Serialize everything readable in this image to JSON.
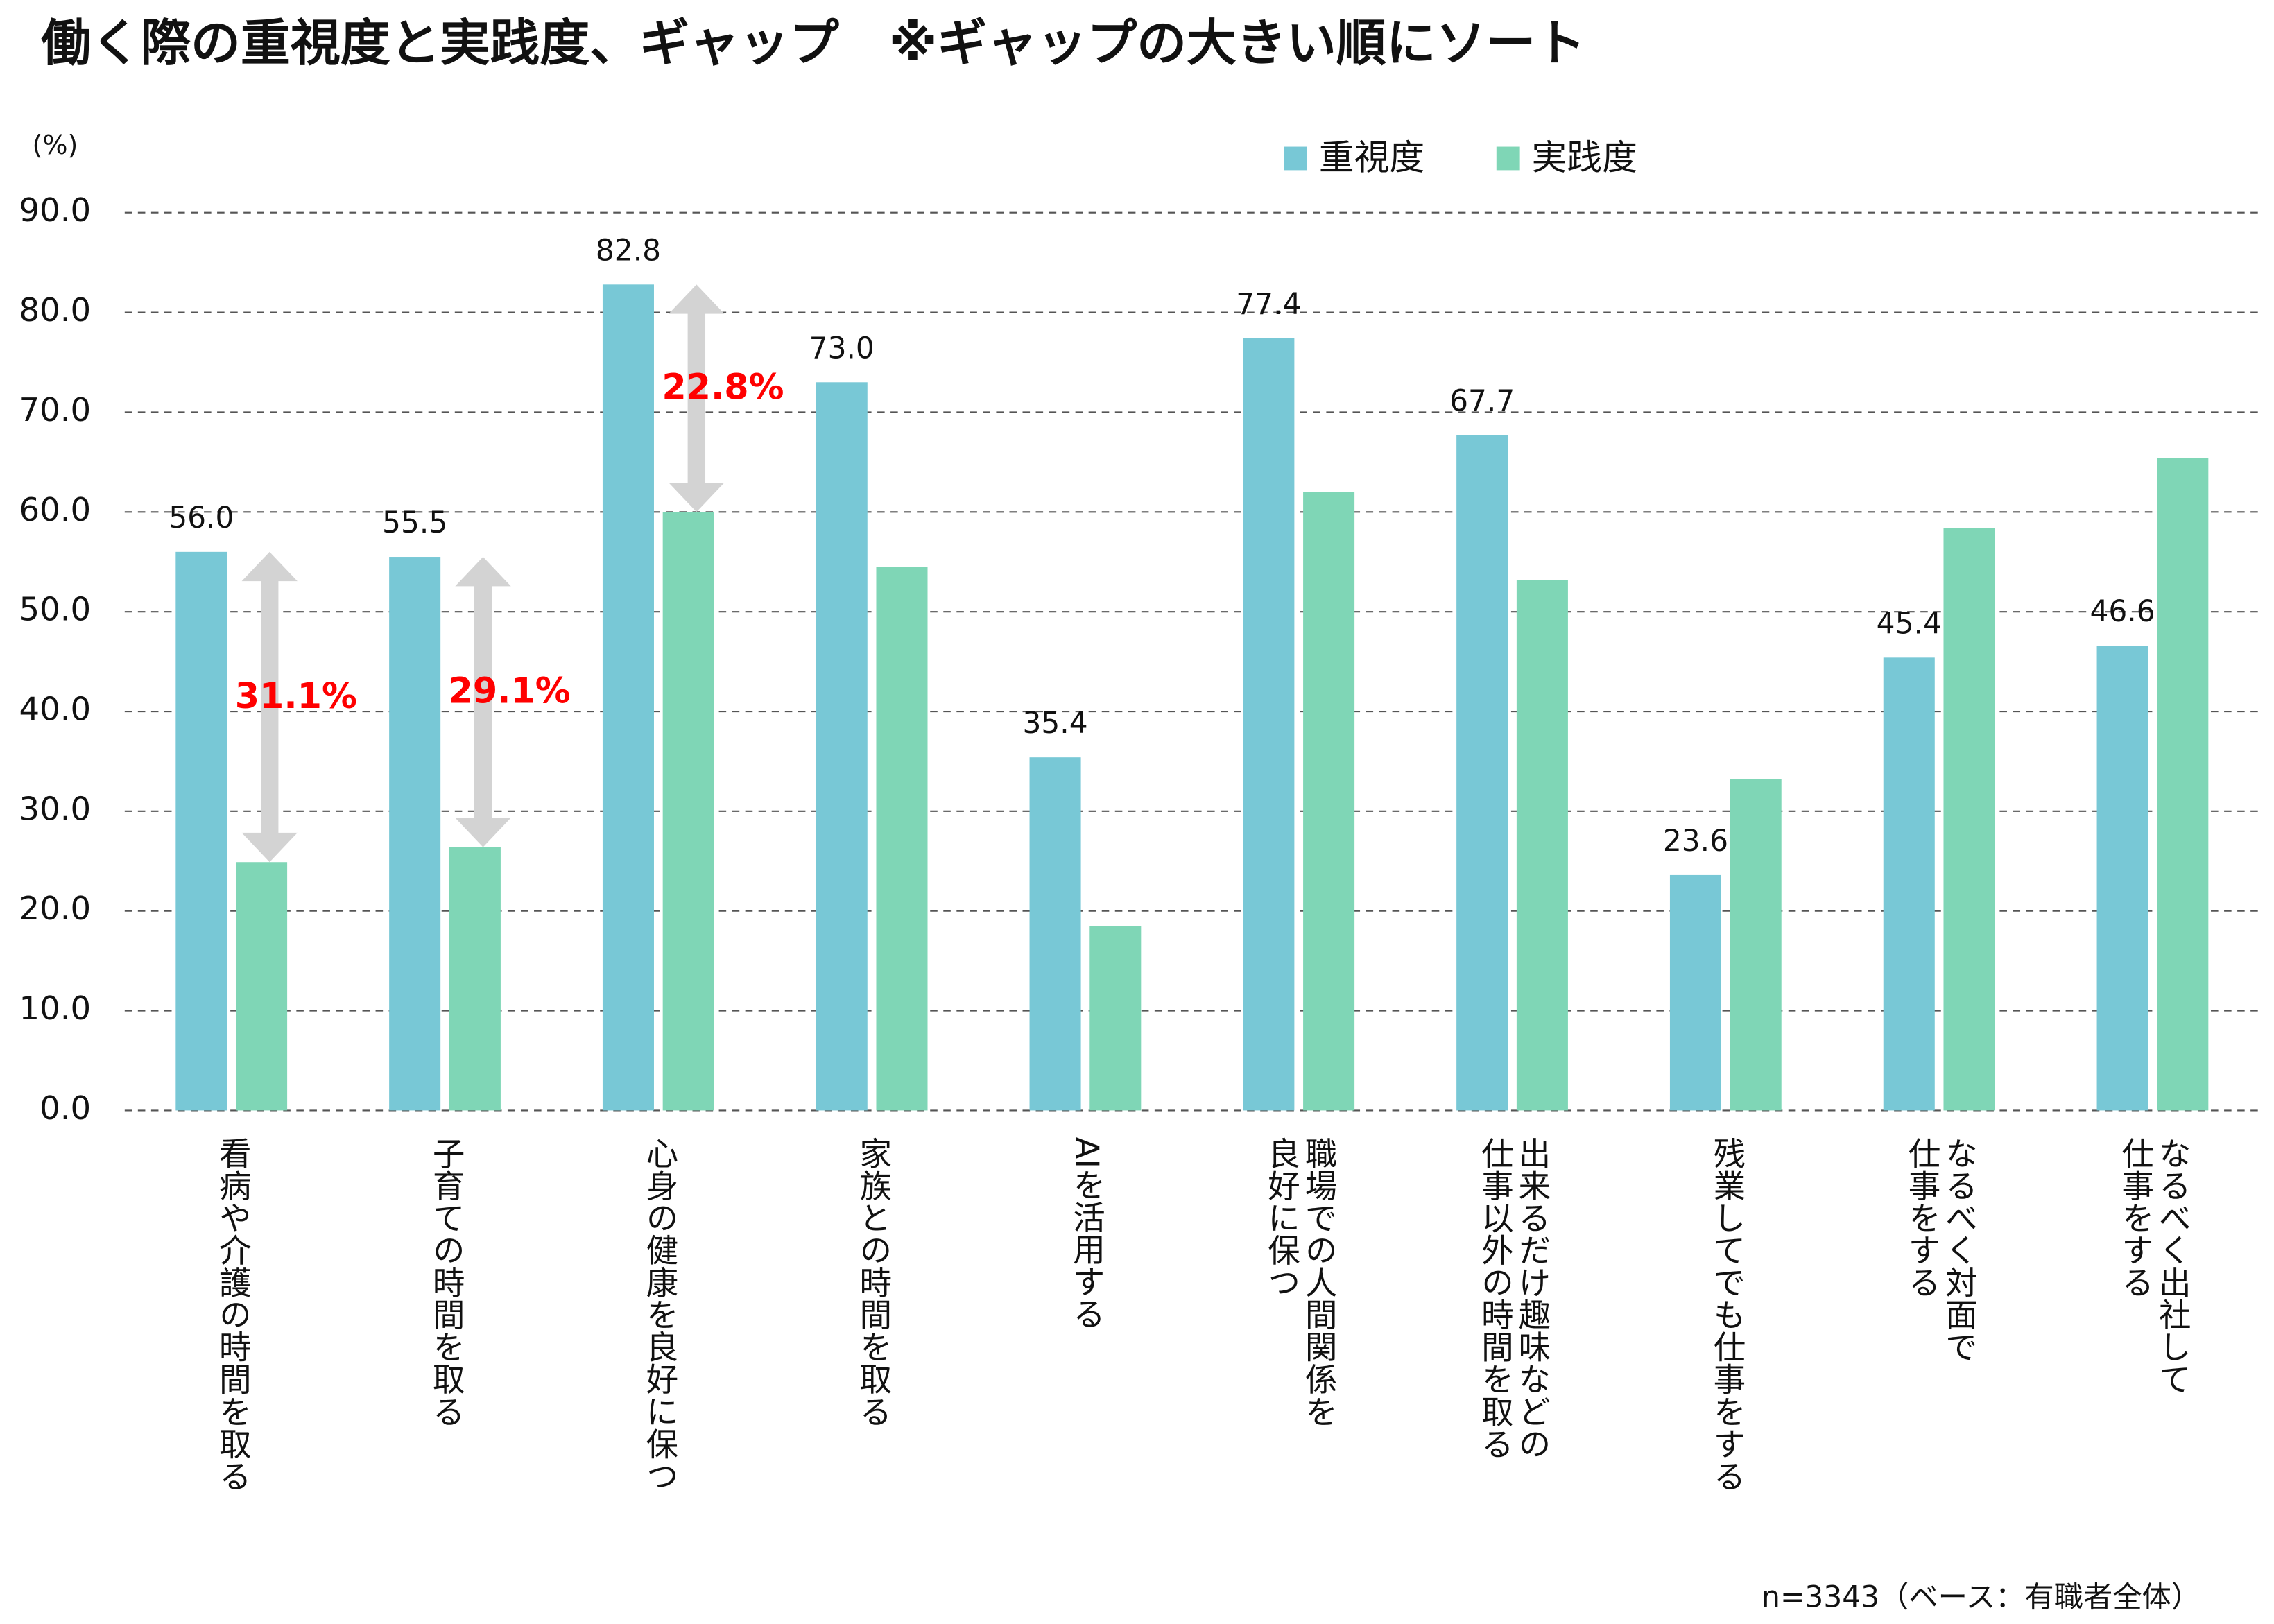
{
  "chart_data": {
    "type": "bar",
    "title": "働く際の重視度と実践度、ギャップ　※ギャップの大きい順にソート",
    "y_label": "(%)",
    "footnote": "n=3343（ベース：有職者全体）",
    "categories": [
      "看病や介護の時間を取る",
      "子育ての時間を取る",
      "心身の健康を良好に保つ",
      "家族との時間を取る",
      "AIを活用する",
      "職場での人間関係を\n良好に保つ",
      "出来るだけ趣味などの\n仕事以外の時間を取る",
      "残業してでも仕事をする",
      "なるべく対面で\n仕事をする",
      "なるべく出社して\n仕事をする"
    ],
    "series": [
      {
        "name": "重視度",
        "color": "#78c8d6",
        "values": [
          56.0,
          55.5,
          82.8,
          73.0,
          35.4,
          77.4,
          67.7,
          23.6,
          45.4,
          46.6
        ],
        "value_labels": [
          "56.0",
          "55.5",
          "82.8",
          "73.0",
          "35.4",
          "77.4",
          "67.7",
          "23.6",
          "45.4",
          "46.6"
        ]
      },
      {
        "name": "実践度",
        "color": "#7fd6b6",
        "values": [
          24.9,
          26.4,
          60.0,
          54.5,
          18.5,
          62.0,
          53.2,
          33.2,
          58.4,
          65.4
        ]
      }
    ],
    "annotations": [
      {
        "value": 31.1,
        "label": "31.1%"
      },
      {
        "value": 29.1,
        "label": "29.1%"
      },
      {
        "value": 22.8,
        "label": "22.8%"
      }
    ],
    "annotation_color": "#ff0000",
    "arrow_color": "#d3d3d3",
    "ylim": [
      0,
      90
    ],
    "yticks": [
      {
        "value": 0,
        "label": "0.0"
      },
      {
        "value": 10,
        "label": "10.0"
      },
      {
        "value": 20,
        "label": "20.0"
      },
      {
        "value": 30,
        "label": "30.0"
      },
      {
        "value": 40,
        "label": "40.0"
      },
      {
        "value": 50,
        "label": "50.0"
      },
      {
        "value": 60,
        "label": "60.0"
      },
      {
        "value": 70,
        "label": "70.0"
      },
      {
        "value": 80,
        "label": "80.0"
      },
      {
        "value": 90,
        "label": "90.0"
      }
    ],
    "grid": true
  }
}
